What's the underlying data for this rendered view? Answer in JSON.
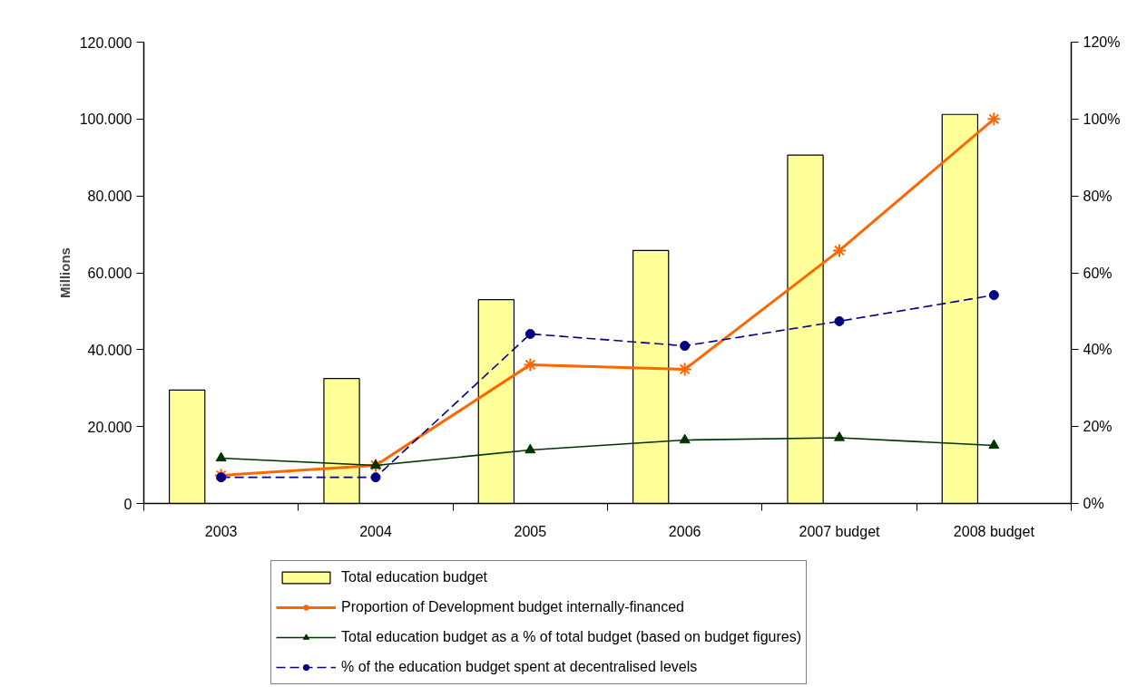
{
  "chart_data": {
    "type": "bar",
    "ylabel": "Millions",
    "categories": [
      "2003",
      "2004",
      "2005",
      "2006",
      "2007 budget",
      "2008 budget"
    ],
    "series": [
      {
        "name": "Total education budget",
        "color": "#ffff99",
        "values": [
          29500,
          32500,
          53000,
          65800,
          90600,
          101200
        ]
      },
      {
        "type": "line",
        "axis": "y2",
        "name": "Proportion of Development budget internally-financed",
        "color": "#ff6600",
        "marker": "cross",
        "line_style": "solid",
        "values": [
          7.3,
          9.9,
          36.1,
          34.9,
          65.8,
          100
        ]
      },
      {
        "type": "line",
        "axis": "y2",
        "name": "Total education budget as a % of total budget (based on budget figures)",
        "color": "#003300",
        "marker": "triangle",
        "line_style": "solid",
        "values": [
          11.8,
          9.9,
          13.9,
          16.5,
          17.1,
          15.1
        ]
      },
      {
        "type": "line",
        "axis": "y2",
        "name": "% of the education budget spent at decentralised levels",
        "color": "#000080",
        "marker": "circle",
        "line_style": "dashed",
        "values": [
          6.8,
          6.8,
          44.1,
          41.0,
          47.4,
          54.2
        ]
      }
    ],
    "ylim": [
      0,
      120000
    ],
    "yticks": [
      0,
      {
        "value": 20000,
        "label": "20.000"
      },
      {
        "value": 40000,
        "label": "40.000"
      },
      {
        "value": 60000,
        "label": "60.000"
      },
      {
        "value": 80000,
        "label": "80.000"
      },
      {
        "value": 100000,
        "label": "100.000"
      },
      {
        "value": 120000,
        "label": "120.000"
      }
    ],
    "y2lim": [
      0,
      120
    ],
    "y2ticks": [
      {
        "value": 0,
        "label": "0%"
      },
      {
        "value": 20,
        "label": "20%"
      },
      {
        "value": 40,
        "label": "40%"
      },
      {
        "value": 60,
        "label": "60%"
      },
      {
        "value": 80,
        "label": "80%"
      },
      {
        "value": 100,
        "label": "100%"
      },
      {
        "value": 120,
        "label": "120%"
      }
    ],
    "legend": "bottom"
  }
}
